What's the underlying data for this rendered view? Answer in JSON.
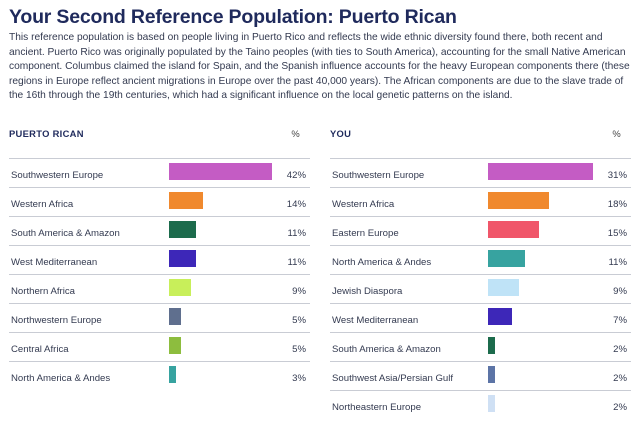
{
  "title": "Your Second Reference Population: Puerto Rican",
  "description": "This reference population is based on people living in Puerto Rico and reflects the wide ethnic diversity found there, both recent and ancient. Puerto Rico was originally populated by the Taino peoples (with ties to South America), accounting for the small Native American component. Columbus claimed the island for Spain, and the Spanish influence accounts for the heavy European components there (these regions in Europe reflect ancient migrations in Europe over the past 40,000 years). The African components are due to the slave trade of the 16th through the 19th centuries, which had a significant influence on the local genetic patterns on the island.",
  "left_panel": {
    "heading": "PUERTO RICAN",
    "pct_header": "%",
    "rows": [
      {
        "label": "Southwestern Europe",
        "value": "42%",
        "pct": 42,
        "color": "#c45cc4"
      },
      {
        "label": "Western Africa",
        "value": "14%",
        "pct": 14,
        "color": "#f0892e"
      },
      {
        "label": "South America & Amazon",
        "value": "11%",
        "pct": 11,
        "color": "#1c6b4c"
      },
      {
        "label": "West Mediterranean",
        "value": "11%",
        "pct": 11,
        "color": "#3d27b8"
      },
      {
        "label": "Northern Africa",
        "value": "9%",
        "pct": 9,
        "color": "#c8ef5a"
      },
      {
        "label": "Northwestern Europe",
        "value": "5%",
        "pct": 5,
        "color": "#5f6f8e"
      },
      {
        "label": "Central Africa",
        "value": "5%",
        "pct": 5,
        "color": "#8dbd3e"
      },
      {
        "label": "North America & Andes",
        "value": "3%",
        "pct": 3,
        "color": "#37a3a0"
      }
    ]
  },
  "right_panel": {
    "heading": "YOU",
    "pct_header": "%",
    "rows": [
      {
        "label": "Southwestern Europe",
        "value": "31%",
        "pct": 31,
        "color": "#c45cc4"
      },
      {
        "label": "Western Africa",
        "value": "18%",
        "pct": 18,
        "color": "#f0892e"
      },
      {
        "label": "Eastern Europe",
        "value": "15%",
        "pct": 15,
        "color": "#f0566a"
      },
      {
        "label": "North America & Andes",
        "value": "11%",
        "pct": 11,
        "color": "#37a3a0"
      },
      {
        "label": "Jewish Diaspora",
        "value": "9%",
        "pct": 9,
        "color": "#bfe3f7"
      },
      {
        "label": "West Mediterranean",
        "value": "7%",
        "pct": 7,
        "color": "#3d27b8"
      },
      {
        "label": "South America & Amazon",
        "value": "2%",
        "pct": 2,
        "color": "#1c6b4c"
      },
      {
        "label": "Southwest Asia/Persian Gulf",
        "value": "2%",
        "pct": 2,
        "color": "#5c74a6"
      },
      {
        "label": "Northeastern Europe",
        "value": "2%",
        "pct": 2,
        "color": "#cfe0f4"
      }
    ]
  }
}
